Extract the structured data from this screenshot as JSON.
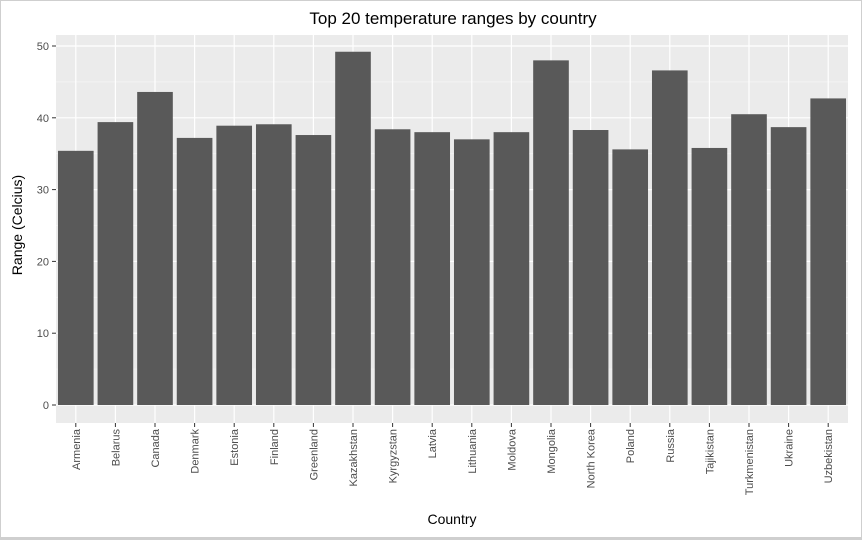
{
  "chart_data": {
    "type": "bar",
    "title": "Top 20 temperature ranges by country",
    "xlabel": "Country",
    "ylabel": "Range (Celcius)",
    "ylim": [
      0,
      50
    ],
    "yticks": [
      0,
      10,
      20,
      30,
      40,
      50
    ],
    "categories": [
      "Armenia",
      "Belarus",
      "Canada",
      "Denmark",
      "Estonia",
      "Finland",
      "Greenland",
      "Kazakhstan",
      "Kyrgyzstan",
      "Latvia",
      "Lithuania",
      "Moldova",
      "Mongolia",
      "North Korea",
      "Poland",
      "Russia",
      "Tajikistan",
      "Turkmenistan",
      "Ukraine",
      "Uzbekistan"
    ],
    "values": [
      35.4,
      39.4,
      43.6,
      37.2,
      38.9,
      39.1,
      37.6,
      49.2,
      38.4,
      38.0,
      37.0,
      38.0,
      48.0,
      38.3,
      35.6,
      46.6,
      35.8,
      40.5,
      38.7,
      42.7
    ],
    "grid": true,
    "colors": {
      "bar": "#595959",
      "panel": "#ebebeb",
      "grid_major": "#ffffff",
      "grid_minor": "#f5f5f5"
    }
  }
}
